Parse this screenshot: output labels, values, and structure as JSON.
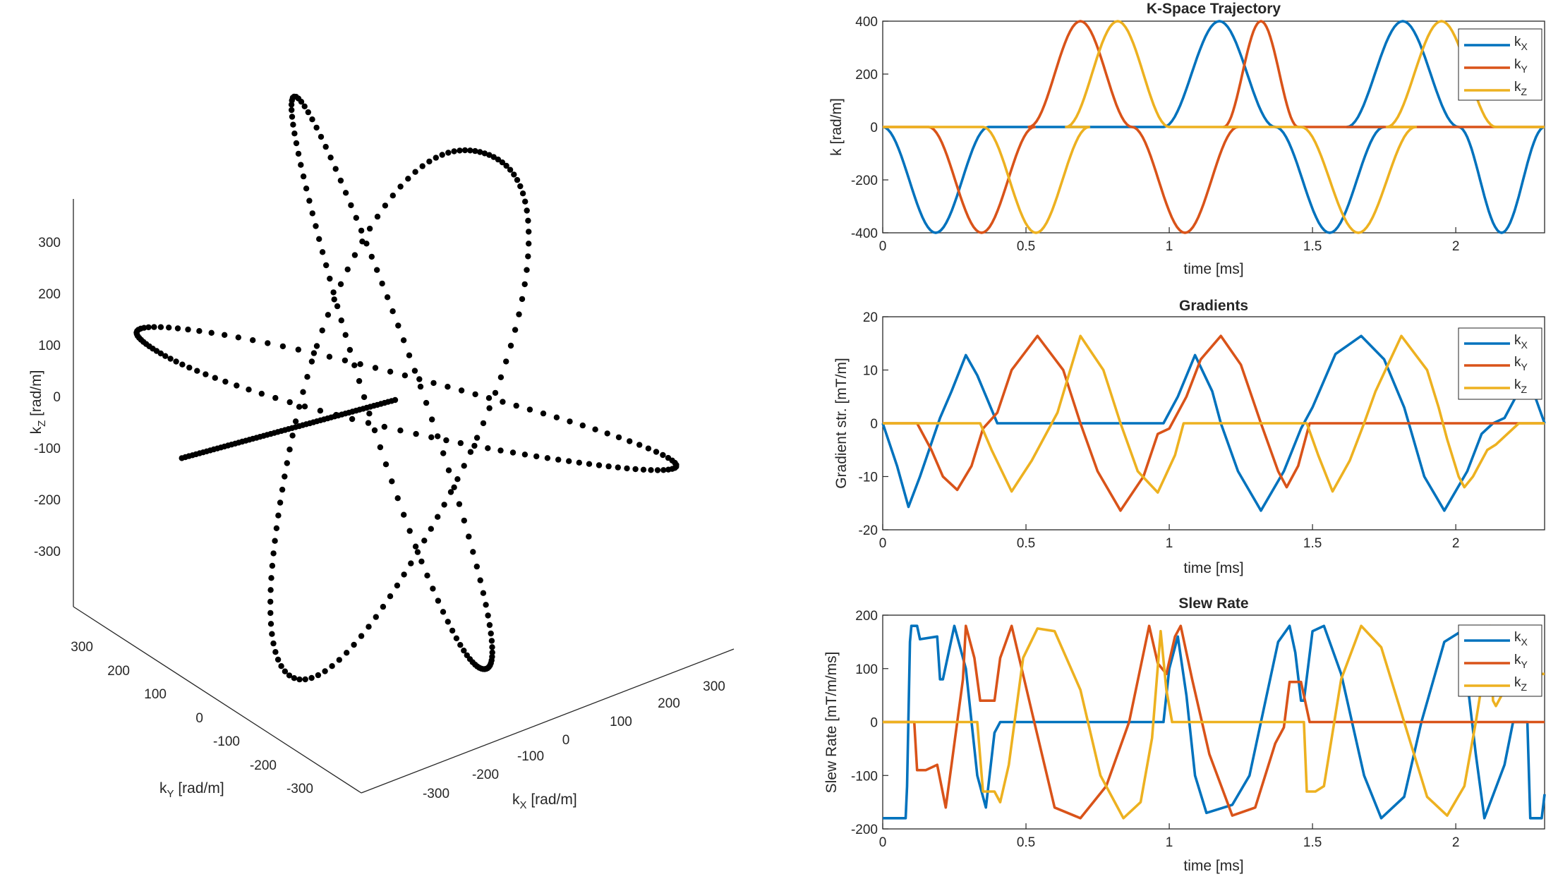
{
  "colors": {
    "kx": "#0072BD",
    "ky": "#D95319",
    "kz": "#EDB120",
    "axis": "#262626",
    "points": "#000000"
  },
  "legend": {
    "kx": "k",
    "kx_sub": "X",
    "ky": "k",
    "ky_sub": "Y",
    "kz": "k",
    "kz_sub": "Z"
  },
  "chart_data": [
    {
      "type": "scatter",
      "title": "",
      "xlabel": "k",
      "xlabel_sub": "X",
      "xlabel_unit": " [rad/m]",
      "ylabel": "k",
      "ylabel_sub": "Y",
      "ylabel_unit": " [rad/m]",
      "zlabel": "k",
      "zlabel_sub": "Z",
      "zlabel_unit": " [rad/m]",
      "xticks": [
        "-300",
        "-200",
        "-100",
        "0",
        "100",
        "200",
        "300"
      ],
      "yticks": [
        "-300",
        "-200",
        "-100",
        "0",
        "100",
        "200",
        "300"
      ],
      "zticks": [
        "-300",
        "-200",
        "-100",
        "0",
        "100",
        "200",
        "300"
      ],
      "lim": [
        -400,
        400
      ],
      "trajectory": "three great-circle loops about the origin, radius 400 rad/m, with a radial spoke to the centre"
    },
    {
      "type": "line",
      "title": "K-Space Trajectory",
      "xlabel": "time [ms]",
      "ylabel": "k [rad/m]",
      "xlim": [
        0,
        2.31
      ],
      "ylim": [
        -400,
        400
      ],
      "xticks": [
        "0",
        "0.5",
        "1",
        "1.5",
        "2"
      ],
      "yticks": [
        "-400",
        "-200",
        "0",
        "200",
        "400"
      ],
      "series": [
        {
          "name": "kX",
          "lobes": [
            [
              0.0,
              0.37,
              -400
            ],
            [
              0.98,
              1.37,
              400
            ],
            [
              1.37,
              1.75,
              -400
            ],
            [
              1.62,
              2.01,
              400
            ],
            [
              2.01,
              2.31,
              -400
            ]
          ]
        },
        {
          "name": "kY",
          "lobes": [
            [
              0.16,
              0.53,
              -400
            ],
            [
              0.51,
              0.87,
              400
            ],
            [
              0.87,
              1.24,
              -400
            ],
            [
              1.19,
              1.45,
              400
            ]
          ]
        },
        {
          "name": "kZ",
          "lobes": [
            [
              0.35,
              0.72,
              -400
            ],
            [
              0.64,
              1.0,
              400
            ],
            [
              1.46,
              1.86,
              -400
            ],
            [
              1.76,
              2.14,
              400
            ]
          ]
        }
      ]
    },
    {
      "type": "line",
      "title": "Gradients",
      "xlabel": "time [ms]",
      "ylabel": "Gradient str. [mT/m]",
      "xlim": [
        0,
        2.31
      ],
      "ylim": [
        -20,
        20
      ],
      "xticks": [
        "0",
        "0.5",
        "1",
        "1.5",
        "2"
      ],
      "yticks": [
        "-20",
        "-10",
        "0",
        "10",
        "20"
      ],
      "series": [
        {
          "name": "kX",
          "points": [
            [
              0,
              0
            ],
            [
              0.05,
              -8
            ],
            [
              0.09,
              -15.7
            ],
            [
              0.13,
              -10
            ],
            [
              0.2,
              1
            ],
            [
              0.24,
              6
            ],
            [
              0.29,
              12.8
            ],
            [
              0.33,
              9
            ],
            [
              0.4,
              0
            ],
            [
              0.98,
              0
            ],
            [
              1.03,
              5
            ],
            [
              1.09,
              12.8
            ],
            [
              1.15,
              6
            ],
            [
              1.18,
              0
            ],
            [
              1.24,
              -9
            ],
            [
              1.32,
              -16.4
            ],
            [
              1.4,
              -9
            ],
            [
              1.46,
              -1
            ],
            [
              1.5,
              3
            ],
            [
              1.58,
              13
            ],
            [
              1.67,
              16.4
            ],
            [
              1.75,
              12
            ],
            [
              1.82,
              3
            ],
            [
              1.89,
              -10
            ],
            [
              1.96,
              -16.4
            ],
            [
              2.04,
              -9
            ],
            [
              2.09,
              -2
            ],
            [
              2.13,
              0
            ],
            [
              2.17,
              1
            ],
            [
              2.22,
              6
            ],
            [
              2.25,
              10
            ],
            [
              2.27,
              6
            ],
            [
              2.31,
              0
            ]
          ]
        },
        {
          "name": "kY",
          "points": [
            [
              0,
              0
            ],
            [
              0.12,
              0
            ],
            [
              0.17,
              -5
            ],
            [
              0.21,
              -10
            ],
            [
              0.26,
              -12.5
            ],
            [
              0.31,
              -8
            ],
            [
              0.35,
              -1
            ],
            [
              0.4,
              2
            ],
            [
              0.45,
              10
            ],
            [
              0.54,
              16.4
            ],
            [
              0.63,
              10
            ],
            [
              0.69,
              0
            ],
            [
              0.75,
              -9
            ],
            [
              0.83,
              -16.4
            ],
            [
              0.91,
              -10
            ],
            [
              0.96,
              -2
            ],
            [
              1.0,
              -1
            ],
            [
              1.06,
              5
            ],
            [
              1.11,
              12
            ],
            [
              1.18,
              16.4
            ],
            [
              1.25,
              11
            ],
            [
              1.32,
              0
            ],
            [
              1.38,
              -9
            ],
            [
              1.41,
              -12
            ],
            [
              1.45,
              -8
            ],
            [
              1.49,
              0
            ],
            [
              2.31,
              0
            ]
          ]
        },
        {
          "name": "kZ",
          "points": [
            [
              0,
              0
            ],
            [
              0.34,
              0
            ],
            [
              0.38,
              -5
            ],
            [
              0.45,
              -12.8
            ],
            [
              0.52,
              -7
            ],
            [
              0.59,
              0
            ],
            [
              0.61,
              2
            ],
            [
              0.69,
              16.4
            ],
            [
              0.77,
              10
            ],
            [
              0.83,
              0
            ],
            [
              0.89,
              -9
            ],
            [
              0.96,
              -13
            ],
            [
              1.02,
              -6
            ],
            [
              1.05,
              0
            ],
            [
              1.48,
              0
            ],
            [
              1.52,
              -6
            ],
            [
              1.57,
              -12.8
            ],
            [
              1.63,
              -7
            ],
            [
              1.68,
              0
            ],
            [
              1.72,
              6
            ],
            [
              1.81,
              16.4
            ],
            [
              1.9,
              10
            ],
            [
              1.94,
              3
            ],
            [
              1.97,
              -3
            ],
            [
              2.01,
              -10
            ],
            [
              2.03,
              -12
            ],
            [
              2.06,
              -10
            ],
            [
              2.11,
              -5
            ],
            [
              2.14,
              -4
            ],
            [
              2.22,
              0
            ],
            [
              2.31,
              0
            ]
          ]
        }
      ]
    },
    {
      "type": "line",
      "title": "Slew Rate",
      "xlabel": "time [ms]",
      "ylabel": "Slew Rate [mT/m/ms]",
      "xlim": [
        0,
        2.31
      ],
      "ylim": [
        -200,
        200
      ],
      "xticks": [
        "0",
        "0.5",
        "1",
        "1.5",
        "2"
      ],
      "yticks": [
        "-200",
        "-100",
        "0",
        "100",
        "200"
      ],
      "series": [
        {
          "name": "kX",
          "points": [
            [
              0,
              -180
            ],
            [
              0.08,
              -180
            ],
            [
              0.085,
              -120
            ],
            [
              0.095,
              150
            ],
            [
              0.1,
              180
            ],
            [
              0.12,
              180
            ],
            [
              0.13,
              155
            ],
            [
              0.19,
              160
            ],
            [
              0.2,
              80
            ],
            [
              0.21,
              80
            ],
            [
              0.25,
              180
            ],
            [
              0.29,
              100
            ],
            [
              0.33,
              -100
            ],
            [
              0.36,
              -160
            ],
            [
              0.39,
              -20
            ],
            [
              0.41,
              0
            ],
            [
              0.98,
              0
            ],
            [
              1.0,
              100
            ],
            [
              1.03,
              160
            ],
            [
              1.06,
              50
            ],
            [
              1.09,
              -100
            ],
            [
              1.13,
              -170
            ],
            [
              1.22,
              -155
            ],
            [
              1.28,
              -100
            ],
            [
              1.32,
              0
            ],
            [
              1.38,
              150
            ],
            [
              1.42,
              180
            ],
            [
              1.44,
              130
            ],
            [
              1.46,
              40
            ],
            [
              1.47,
              40
            ],
            [
              1.5,
              170
            ],
            [
              1.54,
              180
            ],
            [
              1.6,
              90
            ],
            [
              1.68,
              -100
            ],
            [
              1.74,
              -180
            ],
            [
              1.82,
              -140
            ],
            [
              1.88,
              0
            ],
            [
              1.96,
              150
            ],
            [
              2.02,
              170
            ],
            [
              2.07,
              -60
            ],
            [
              2.1,
              -180
            ],
            [
              2.17,
              -80
            ],
            [
              2.2,
              0
            ],
            [
              2.25,
              0
            ],
            [
              2.26,
              -180
            ],
            [
              2.3,
              -180
            ],
            [
              2.31,
              -135
            ]
          ]
        },
        {
          "name": "ky",
          "points": [
            [
              0,
              0
            ],
            [
              0.11,
              0
            ],
            [
              0.12,
              -90
            ],
            [
              0.15,
              -90
            ],
            [
              0.19,
              -80
            ],
            [
              0.22,
              -160
            ],
            [
              0.24,
              -80
            ],
            [
              0.28,
              80
            ],
            [
              0.29,
              180
            ],
            [
              0.32,
              120
            ],
            [
              0.34,
              40
            ],
            [
              0.39,
              40
            ],
            [
              0.41,
              120
            ],
            [
              0.45,
              180
            ],
            [
              0.52,
              20
            ],
            [
              0.6,
              -160
            ],
            [
              0.69,
              -180
            ],
            [
              0.78,
              -120
            ],
            [
              0.86,
              0
            ],
            [
              0.93,
              180
            ],
            [
              0.96,
              110
            ],
            [
              0.99,
              90
            ],
            [
              1.02,
              160
            ],
            [
              1.04,
              180
            ],
            [
              1.08,
              80
            ],
            [
              1.14,
              -60
            ],
            [
              1.22,
              -175
            ],
            [
              1.3,
              -160
            ],
            [
              1.37,
              -40
            ],
            [
              1.4,
              -10
            ],
            [
              1.42,
              75
            ],
            [
              1.46,
              75
            ],
            [
              1.49,
              0
            ],
            [
              2.31,
              0
            ]
          ]
        },
        {
          "name": "kz",
          "points": [
            [
              0,
              0
            ],
            [
              0.33,
              0
            ],
            [
              0.35,
              -130
            ],
            [
              0.39,
              -130
            ],
            [
              0.41,
              -150
            ],
            [
              0.44,
              -80
            ],
            [
              0.49,
              120
            ],
            [
              0.54,
              175
            ],
            [
              0.6,
              170
            ],
            [
              0.69,
              60
            ],
            [
              0.76,
              -100
            ],
            [
              0.84,
              -180
            ],
            [
              0.9,
              -150
            ],
            [
              0.94,
              -30
            ],
            [
              0.97,
              170
            ],
            [
              0.99,
              60
            ],
            [
              1.01,
              0
            ],
            [
              1.47,
              0
            ],
            [
              1.48,
              -130
            ],
            [
              1.51,
              -130
            ],
            [
              1.54,
              -120
            ],
            [
              1.6,
              80
            ],
            [
              1.67,
              180
            ],
            [
              1.74,
              140
            ],
            [
              1.82,
              0
            ],
            [
              1.9,
              -140
            ],
            [
              1.97,
              -175
            ],
            [
              2.03,
              -120
            ],
            [
              2.07,
              0
            ],
            [
              2.1,
              100
            ],
            [
              2.12,
              180
            ],
            [
              2.13,
              40
            ],
            [
              2.14,
              30
            ],
            [
              2.2,
              90
            ],
            [
              2.31,
              90
            ]
          ]
        }
      ]
    }
  ]
}
